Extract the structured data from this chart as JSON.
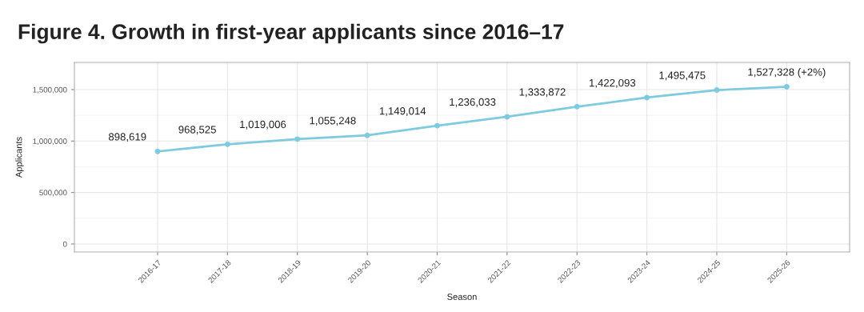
{
  "chart_data": {
    "type": "line",
    "title": "Figure 4. Growth in first-year applicants since 2016–17",
    "xlabel": "Season",
    "ylabel": "Applicants",
    "categories": [
      "2016-17",
      "2017-18",
      "2018-19",
      "2019-20",
      "2020-21",
      "2021-22",
      "2022-23",
      "2023-24",
      "2024-25",
      "2025-26"
    ],
    "series": [
      {
        "color": "#7ecbe0",
        "values": [
          898619,
          968525,
          1019006,
          1055248,
          1149014,
          1236033,
          1333872,
          1422093,
          1495475,
          1527328
        ],
        "value_labels": [
          "898,619",
          "968,525",
          "1,019,006",
          "1,055,248",
          "1,149,014",
          "1,236,033",
          "1,333,872",
          "1,422,093",
          "1,495,475",
          "1,527,328 (+2%)"
        ]
      }
    ],
    "ylim": [
      -78000,
      1764000
    ],
    "yticks": [
      {
        "value": 0,
        "label": "0"
      },
      {
        "value": 500000,
        "label": "500,000"
      },
      {
        "value": 1000000,
        "label": "1,000,000"
      },
      {
        "value": 1500000,
        "label": "1,500,000"
      }
    ],
    "grid": true,
    "marker": "circle",
    "line_style": "solid"
  }
}
